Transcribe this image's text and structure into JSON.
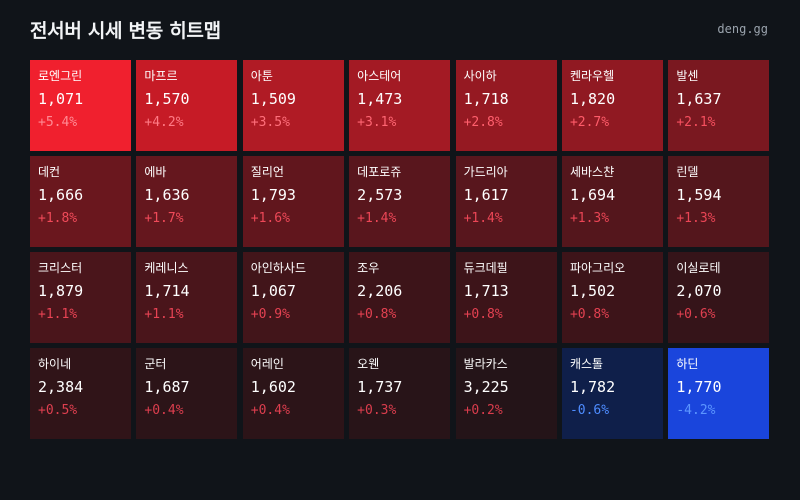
{
  "header": {
    "title": "전서버 시세 변동 히트맵",
    "site": "deng.gg"
  },
  "colors": {
    "background": "#101419",
    "up_text": "#f0455a",
    "down_text": "#4e8cff"
  },
  "cells": [
    {
      "name": "로엔그린",
      "price": "1,071",
      "change": "+5.4%",
      "bg": "#f0202e",
      "change_color": "#ff8a94"
    },
    {
      "name": "마프르",
      "price": "1,570",
      "change": "+4.2%",
      "bg": "#c61b26",
      "change_color": "#ff7b86"
    },
    {
      "name": "아툰",
      "price": "1,509",
      "change": "+3.5%",
      "bg": "#b01b25",
      "change_color": "#ff6f7b"
    },
    {
      "name": "아스테어",
      "price": "1,473",
      "change": "+3.1%",
      "bg": "#a31a24",
      "change_color": "#ff6673"
    },
    {
      "name": "사이하",
      "price": "1,718",
      "change": "+2.8%",
      "bg": "#951922",
      "change_color": "#ff5f6d"
    },
    {
      "name": "켄라우헬",
      "price": "1,820",
      "change": "+2.7%",
      "bg": "#901922",
      "change_color": "#ff5c6a"
    },
    {
      "name": "발센",
      "price": "1,637",
      "change": "+2.1%",
      "bg": "#7a1820",
      "change_color": "#f7505f"
    },
    {
      "name": "데컨",
      "price": "1,666",
      "change": "+1.8%",
      "bg": "#6a171e",
      "change_color": "#f04a59"
    },
    {
      "name": "에바",
      "price": "1,636",
      "change": "+1.7%",
      "bg": "#65171e",
      "change_color": "#f04a59"
    },
    {
      "name": "질리언",
      "price": "1,793",
      "change": "+1.6%",
      "bg": "#61161d",
      "change_color": "#ee4858"
    },
    {
      "name": "데포로쥬",
      "price": "2,573",
      "change": "+1.4%",
      "bg": "#59161d",
      "change_color": "#ec4656"
    },
    {
      "name": "가드리아",
      "price": "1,617",
      "change": "+1.4%",
      "bg": "#58161d",
      "change_color": "#ec4656"
    },
    {
      "name": "세바스챤",
      "price": "1,694",
      "change": "+1.3%",
      "bg": "#54161c",
      "change_color": "#ea4555"
    },
    {
      "name": "린델",
      "price": "1,594",
      "change": "+1.3%",
      "bg": "#54161c",
      "change_color": "#ea4555"
    },
    {
      "name": "크리스터",
      "price": "1,879",
      "change": "+1.1%",
      "bg": "#4a151b",
      "change_color": "#e84354"
    },
    {
      "name": "케레니스",
      "price": "1,714",
      "change": "+1.1%",
      "bg": "#4a151b",
      "change_color": "#e84354"
    },
    {
      "name": "아인하사드",
      "price": "1,067",
      "change": "+0.9%",
      "bg": "#42151a",
      "change_color": "#e54252"
    },
    {
      "name": "조우",
      "price": "2,206",
      "change": "+0.8%",
      "bg": "#3d1419",
      "change_color": "#e34151"
    },
    {
      "name": "듀크데필",
      "price": "1,713",
      "change": "+0.8%",
      "bg": "#3d1419",
      "change_color": "#e34151"
    },
    {
      "name": "파아그리오",
      "price": "1,502",
      "change": "+0.8%",
      "bg": "#3d1419",
      "change_color": "#e34151"
    },
    {
      "name": "이실로테",
      "price": "2,070",
      "change": "+0.6%",
      "bg": "#351419",
      "change_color": "#e04050"
    },
    {
      "name": "하이네",
      "price": "2,384",
      "change": "+0.5%",
      "bg": "#301418",
      "change_color": "#de3f4f"
    },
    {
      "name": "군터",
      "price": "1,687",
      "change": "+0.4%",
      "bg": "#2c1418",
      "change_color": "#dc3e4e"
    },
    {
      "name": "어레인",
      "price": "1,602",
      "change": "+0.4%",
      "bg": "#2c1418",
      "change_color": "#dc3e4e"
    },
    {
      "name": "오웬",
      "price": "1,737",
      "change": "+0.3%",
      "bg": "#281418",
      "change_color": "#da3d4d"
    },
    {
      "name": "발라카스",
      "price": "3,225",
      "change": "+0.2%",
      "bg": "#241418",
      "change_color": "#d83c4c"
    },
    {
      "name": "캐스톨",
      "price": "1,782",
      "change": "-0.6%",
      "bg": "#0f1f4a",
      "change_color": "#4e8cff"
    },
    {
      "name": "하딘",
      "price": "1,770",
      "change": "-4.2%",
      "bg": "#1a45dc",
      "change_color": "#5c96ff"
    }
  ]
}
